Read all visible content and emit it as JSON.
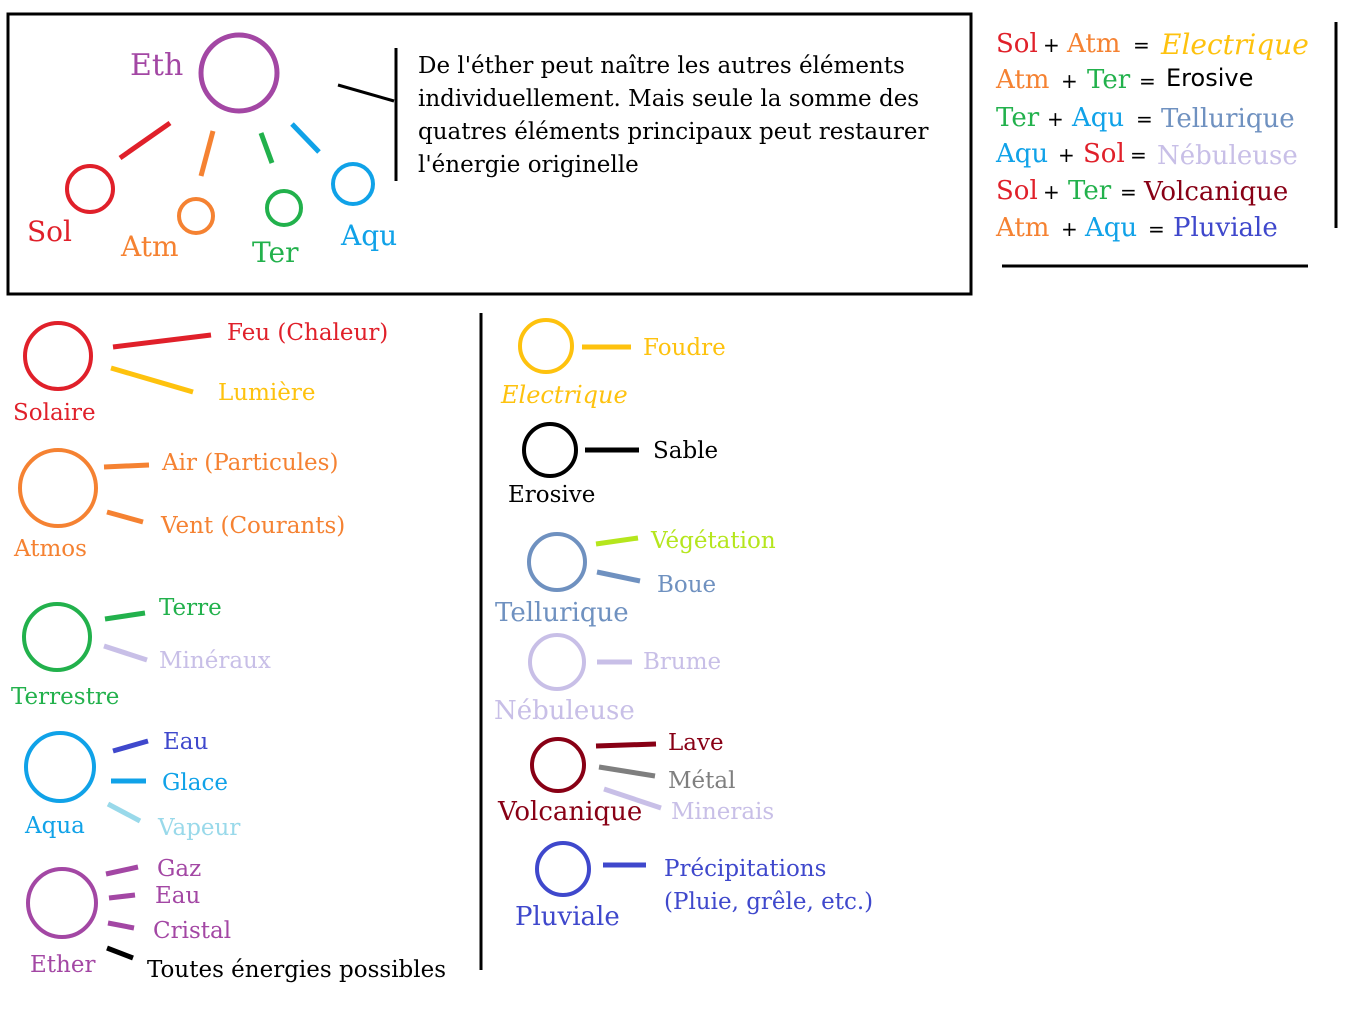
{
  "colors": {
    "sol": "#e0202a",
    "atm": "#f58232",
    "ter": "#22b14c",
    "aqu": "#10a2e8",
    "eth": "#a347a4",
    "elec": "#fec20e",
    "erosive": "#000000",
    "tellurique": "#6f91c0",
    "nebuleuse": "#c8bfe7",
    "volcanique": "#880015",
    "pluviale": "#3f48cc",
    "vegetation": "#b5e61d",
    "metal": "#7f7f7f",
    "vapeur": "#99d9ea"
  },
  "top_diagram": {
    "center": "Eth",
    "children": [
      "Sol",
      "Atm",
      "Ter",
      "Aqu"
    ]
  },
  "intro": {
    "lines": [
      "De l'éther peut naître les autres éléments",
      "individuellement. Mais seule la somme des",
      "quatres éléments principaux peut restaurer",
      "l'énergie originelle"
    ]
  },
  "combinations": [
    {
      "a": "Sol",
      "b": "Atm",
      "result": "Electrique"
    },
    {
      "a": "Atm",
      "b": "Ter",
      "result": "Erosive"
    },
    {
      "a": "Ter",
      "b": "Aqu",
      "result": "Tellurique"
    },
    {
      "a": "Aqu",
      "b": "Sol",
      "result": "Nébuleuse"
    },
    {
      "a": "Sol",
      "b": "Ter",
      "result": "Volcanique"
    },
    {
      "a": "Atm",
      "b": "Aqu",
      "result": "Pluviale"
    }
  ],
  "base_elements": [
    {
      "name": "Solaire",
      "items": [
        "Feu (Chaleur)",
        "Lumière"
      ]
    },
    {
      "name": "Atmos",
      "items": [
        "Air (Particules)",
        "Vent (Courants)"
      ]
    },
    {
      "name": "Terrestre",
      "items": [
        "Terre",
        "Minéraux"
      ]
    },
    {
      "name": "Aqua",
      "items": [
        "Eau",
        "Glace",
        "Vapeur"
      ]
    },
    {
      "name": "Ether",
      "items": [
        "Gaz",
        "Eau",
        "Cristal",
        "Toutes énergies possibles"
      ]
    }
  ],
  "combined_elements": [
    {
      "name": "Electrique",
      "items": [
        "Foudre"
      ]
    },
    {
      "name": "Erosive",
      "items": [
        "Sable"
      ]
    },
    {
      "name": "Tellurique",
      "items": [
        "Végétation",
        "Boue"
      ]
    },
    {
      "name": "Nébuleuse",
      "items": [
        "Brume"
      ]
    },
    {
      "name": "Volcanique",
      "items": [
        "Lave",
        "Métal",
        "Minerais"
      ]
    },
    {
      "name": "Pluviale",
      "items": [
        "Précipitations",
        "(Pluie, grêle, etc.)"
      ]
    }
  ],
  "symbols": {
    "plus": "+",
    "equals": "="
  }
}
